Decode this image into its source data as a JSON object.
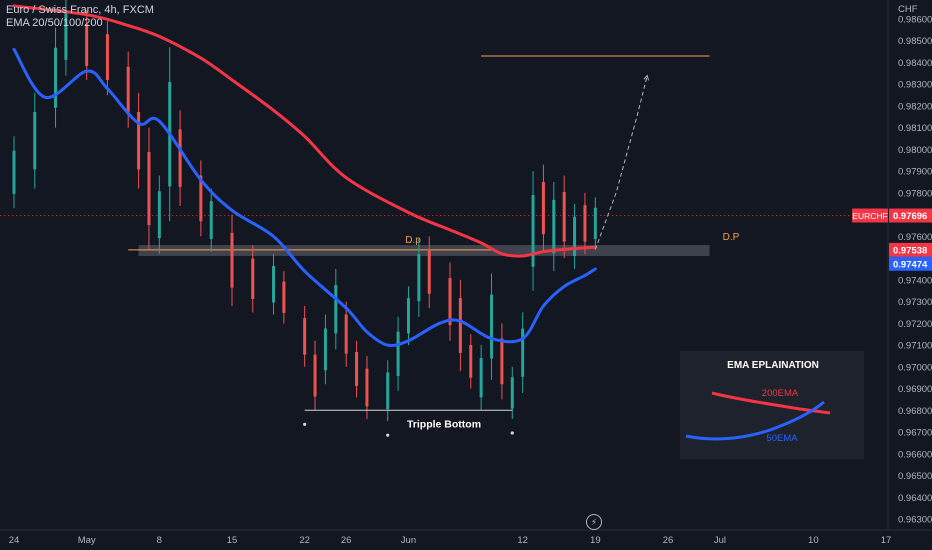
{
  "symbol_title": "Euro / Swiss Franc, 4h, FXCM",
  "indicator_label": "EMA 20/50/100/200",
  "colors": {
    "background": "#131722",
    "ema200": "#f23645",
    "ema50": "#2962ff",
    "level": "#f7a14a",
    "bull": "#26a69a",
    "bear": "#ef5350"
  },
  "chart_data": {
    "type": "candlestick",
    "symbol": "EURCHF",
    "timeframe": "4h",
    "currency_label": "CHF",
    "y_ticks": [
      0.986,
      0.985,
      0.984,
      0.983,
      0.982,
      0.981,
      0.98,
      0.979,
      0.978,
      0.977,
      0.976,
      0.975,
      0.974,
      0.973,
      0.972,
      0.971,
      0.97,
      0.969,
      0.968,
      0.967,
      0.966,
      0.965,
      0.964,
      0.963
    ],
    "x_ticks": [
      {
        "label": "24",
        "date": "2023-04-24"
      },
      {
        "label": "May",
        "date": "2023-05-01"
      },
      {
        "label": "8",
        "date": "2023-05-08"
      },
      {
        "label": "15",
        "date": "2023-05-15"
      },
      {
        "label": "22",
        "date": "2023-05-22"
      },
      {
        "label": "26",
        "date": "2023-05-26"
      },
      {
        "label": "Jun",
        "date": "2023-06-01"
      },
      {
        "label": "12",
        "date": "2023-06-12"
      },
      {
        "label": "19",
        "date": "2023-06-19"
      },
      {
        "label": "26",
        "date": "2023-06-26"
      },
      {
        "label": "Jul",
        "date": "2023-07-01"
      },
      {
        "label": "10",
        "date": "2023-07-10"
      },
      {
        "label": "17",
        "date": "2023-07-17"
      }
    ],
    "price_labels": [
      {
        "name": "EURCHF",
        "value": "0.97696",
        "color": "#f23645"
      },
      {
        "name": "",
        "value": "0.97538",
        "color": "#f23645"
      },
      {
        "name": "",
        "value": "0.97474",
        "color": "#2962ff"
      }
    ],
    "ema200_series": [
      {
        "date": "2023-04-24",
        "value": 0.9866
      },
      {
        "date": "2023-05-01",
        "value": 0.9862
      },
      {
        "date": "2023-05-05",
        "value": 0.9857
      },
      {
        "date": "2023-05-08",
        "value": 0.9852
      },
      {
        "date": "2023-05-12",
        "value": 0.9842
      },
      {
        "date": "2023-05-15",
        "value": 0.9832
      },
      {
        "date": "2023-05-19",
        "value": 0.9818
      },
      {
        "date": "2023-05-22",
        "value": 0.9806
      },
      {
        "date": "2023-05-26",
        "value": 0.9787
      },
      {
        "date": "2023-06-01",
        "value": 0.9771
      },
      {
        "date": "2023-06-05",
        "value": 0.9763
      },
      {
        "date": "2023-06-08",
        "value": 0.9757
      },
      {
        "date": "2023-06-10",
        "value": 0.9752
      },
      {
        "date": "2023-06-12",
        "value": 0.9751
      },
      {
        "date": "2023-06-14",
        "value": 0.9753
      },
      {
        "date": "2023-06-16",
        "value": 0.9754
      },
      {
        "date": "2023-06-19",
        "value": 0.9755
      }
    ],
    "ema50_series": [
      {
        "date": "2023-04-24",
        "value": 0.9846
      },
      {
        "date": "2023-04-27",
        "value": 0.9824
      },
      {
        "date": "2023-05-01",
        "value": 0.9836
      },
      {
        "date": "2023-05-03",
        "value": 0.9828
      },
      {
        "date": "2023-05-06",
        "value": 0.9812
      },
      {
        "date": "2023-05-08",
        "value": 0.9813
      },
      {
        "date": "2023-05-12",
        "value": 0.9786
      },
      {
        "date": "2023-05-15",
        "value": 0.9772
      },
      {
        "date": "2023-05-19",
        "value": 0.976
      },
      {
        "date": "2023-05-22",
        "value": 0.9744
      },
      {
        "date": "2023-05-26",
        "value": 0.9727
      },
      {
        "date": "2023-05-28",
        "value": 0.9716
      },
      {
        "date": "2023-05-30",
        "value": 0.971
      },
      {
        "date": "2023-06-01",
        "value": 0.9712
      },
      {
        "date": "2023-06-04",
        "value": 0.972
      },
      {
        "date": "2023-06-06",
        "value": 0.9721
      },
      {
        "date": "2023-06-09",
        "value": 0.9713
      },
      {
        "date": "2023-06-12",
        "value": 0.9713
      },
      {
        "date": "2023-06-14",
        "value": 0.9728
      },
      {
        "date": "2023-06-16",
        "value": 0.9737
      },
      {
        "date": "2023-06-18",
        "value": 0.9742
      },
      {
        "date": "2023-06-19",
        "value": 0.9745
      }
    ],
    "candles": [
      {
        "date": "2023-04-24",
        "high": 0.9806,
        "low": 0.9773,
        "trend": "up"
      },
      {
        "date": "2023-04-26",
        "high": 0.9826,
        "low": 0.9782,
        "trend": "up"
      },
      {
        "date": "2023-04-28",
        "high": 0.9856,
        "low": 0.981,
        "trend": "up"
      },
      {
        "date": "2023-04-29",
        "high": 0.987,
        "low": 0.9834,
        "trend": "up"
      },
      {
        "date": "2023-05-01",
        "high": 0.9864,
        "low": 0.9832,
        "trend": "down"
      },
      {
        "date": "2023-05-03",
        "high": 0.986,
        "low": 0.9825,
        "trend": "down"
      },
      {
        "date": "2023-05-05",
        "high": 0.9845,
        "low": 0.981,
        "trend": "down"
      },
      {
        "date": "2023-05-06",
        "high": 0.9826,
        "low": 0.9782,
        "trend": "down"
      },
      {
        "date": "2023-05-07",
        "high": 0.981,
        "low": 0.9754,
        "trend": "down"
      },
      {
        "date": "2023-05-08",
        "high": 0.9788,
        "low": 0.9752,
        "trend": "up"
      },
      {
        "date": "2023-05-09",
        "high": 0.9847,
        "low": 0.9767,
        "trend": "up"
      },
      {
        "date": "2023-05-10",
        "high": 0.9818,
        "low": 0.9774,
        "trend": "down"
      },
      {
        "date": "2023-05-12",
        "high": 0.9795,
        "low": 0.976,
        "trend": "down"
      },
      {
        "date": "2023-05-13",
        "high": 0.9782,
        "low": 0.9753,
        "trend": "up"
      },
      {
        "date": "2023-05-15",
        "high": 0.977,
        "low": 0.9728,
        "trend": "down"
      },
      {
        "date": "2023-05-17",
        "high": 0.9756,
        "low": 0.9725,
        "trend": "down"
      },
      {
        "date": "2023-05-19",
        "high": 0.9752,
        "low": 0.9724,
        "trend": "up"
      },
      {
        "date": "2023-05-20",
        "high": 0.9744,
        "low": 0.972,
        "trend": "down"
      },
      {
        "date": "2023-05-22",
        "high": 0.9728,
        "low": 0.97,
        "trend": "down"
      },
      {
        "date": "2023-05-23",
        "high": 0.9712,
        "low": 0.968,
        "trend": "down"
      },
      {
        "date": "2023-05-24",
        "high": 0.9724,
        "low": 0.9692,
        "trend": "up"
      },
      {
        "date": "2023-05-25",
        "high": 0.9745,
        "low": 0.9708,
        "trend": "up"
      },
      {
        "date": "2023-05-26",
        "high": 0.973,
        "low": 0.97,
        "trend": "down"
      },
      {
        "date": "2023-05-27",
        "high": 0.9712,
        "low": 0.9686,
        "trend": "down"
      },
      {
        "date": "2023-05-28",
        "high": 0.9705,
        "low": 0.9676,
        "trend": "down"
      },
      {
        "date": "2023-05-30",
        "high": 0.9703,
        "low": 0.9675,
        "trend": "up"
      },
      {
        "date": "2023-05-31",
        "high": 0.9723,
        "low": 0.9689,
        "trend": "up"
      },
      {
        "date": "2023-06-01",
        "high": 0.9737,
        "low": 0.971,
        "trend": "up"
      },
      {
        "date": "2023-06-02",
        "high": 0.9759,
        "low": 0.9723,
        "trend": "up"
      },
      {
        "date": "2023-06-03",
        "high": 0.976,
        "low": 0.9727,
        "trend": "down"
      },
      {
        "date": "2023-06-05",
        "high": 0.9748,
        "low": 0.9712,
        "trend": "down"
      },
      {
        "date": "2023-06-06",
        "high": 0.974,
        "low": 0.9698,
        "trend": "down"
      },
      {
        "date": "2023-06-07",
        "high": 0.9715,
        "low": 0.969,
        "trend": "down"
      },
      {
        "date": "2023-06-08",
        "high": 0.971,
        "low": 0.968,
        "trend": "up"
      },
      {
        "date": "2023-06-09",
        "high": 0.9743,
        "low": 0.9694,
        "trend": "up"
      },
      {
        "date": "2023-06-10",
        "high": 0.972,
        "low": 0.9685,
        "trend": "down"
      },
      {
        "date": "2023-06-11",
        "high": 0.97,
        "low": 0.9676,
        "trend": "up"
      },
      {
        "date": "2023-06-12",
        "high": 0.9725,
        "low": 0.9688,
        "trend": "up"
      },
      {
        "date": "2023-06-13",
        "high": 0.979,
        "low": 0.9735,
        "trend": "up"
      },
      {
        "date": "2023-06-14",
        "high": 0.9793,
        "low": 0.9753,
        "trend": "down"
      },
      {
        "date": "2023-06-15",
        "high": 0.9785,
        "low": 0.9744,
        "trend": "up"
      },
      {
        "date": "2023-06-16",
        "high": 0.9788,
        "low": 0.975,
        "trend": "down"
      },
      {
        "date": "2023-06-17",
        "high": 0.9775,
        "low": 0.9745,
        "trend": "up"
      },
      {
        "date": "2023-06-18",
        "high": 0.978,
        "low": 0.9752,
        "trend": "down"
      },
      {
        "date": "2023-06-19",
        "high": 0.9778,
        "low": 0.9754,
        "trend": "up"
      }
    ],
    "current_price": {
      "name": "EURCHF",
      "value": 0.97696
    },
    "levels": [
      {
        "name": "resistance",
        "value": 0.9843,
        "from": "2023-06-08",
        "to": "2023-06-30"
      },
      {
        "name": "support",
        "value": 0.97538,
        "from": "2023-05-05",
        "to": "2023-06-09"
      }
    ],
    "demand_zone": {
      "y_range": [
        0.9751,
        0.9756
      ],
      "from": "2023-05-06",
      "to": "2023-06-30",
      "labels": [
        "D.p",
        "D.P"
      ]
    },
    "projection_path": [
      {
        "date": "2023-06-19",
        "value": 0.9754
      },
      {
        "date": "2023-06-21",
        "value": 0.978
      },
      {
        "date": "2023-06-23",
        "value": 0.9815
      },
      {
        "date": "2023-06-24",
        "value": 0.9834
      }
    ],
    "pattern": {
      "label": "Tripple Bottom",
      "value": 0.968,
      "from": "2023-05-22",
      "to": "2023-06-11",
      "points": [
        {
          "date": "2023-05-22",
          "value": 0.968
        },
        {
          "date": "2023-05-30",
          "value": 0.9675
        },
        {
          "date": "2023-06-11",
          "value": 0.9676
        }
      ]
    },
    "inset": {
      "title": "EMA EPLAINATION",
      "series": [
        {
          "name": "200EMA",
          "color": "#f23645"
        },
        {
          "name": "50EMA",
          "color": "#2962ff"
        }
      ]
    }
  }
}
